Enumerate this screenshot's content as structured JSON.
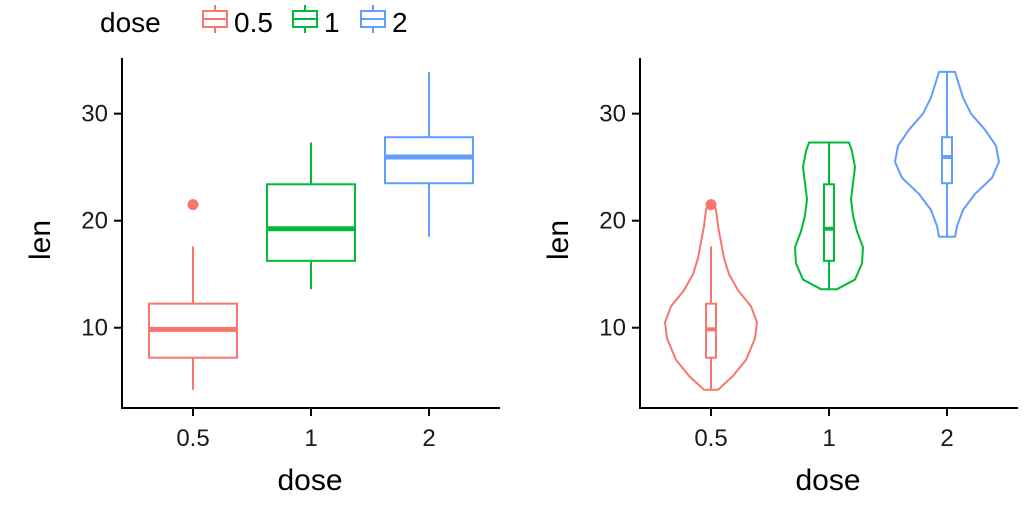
{
  "legend": {
    "title": "dose",
    "entries": [
      {
        "label": "0.5",
        "color": "#F8766D"
      },
      {
        "label": "1",
        "color": "#00BA38"
      },
      {
        "label": "2",
        "color": "#619CFF"
      }
    ]
  },
  "chart_data": [
    {
      "type": "boxplot",
      "xlabel": "dose",
      "ylabel": "len",
      "categories": [
        "0.5",
        "1",
        "2"
      ],
      "ylim": [
        2.5,
        35.2
      ],
      "yticks": [
        "10",
        "20",
        "30"
      ],
      "ytick_values": [
        10,
        20,
        30
      ],
      "boxes": [
        {
          "category": "0.5",
          "min": 4.2,
          "q1": 7.2,
          "median": 9.85,
          "q3": 12.25,
          "max": 17.6,
          "outliers": [
            21.5
          ],
          "color": "#F8766D"
        },
        {
          "category": "1",
          "min": 13.6,
          "q1": 16.25,
          "median": 19.25,
          "q3": 23.4,
          "max": 27.3,
          "outliers": [],
          "color": "#00BA38"
        },
        {
          "category": "2",
          "min": 18.5,
          "q1": 23.5,
          "median": 25.95,
          "q3": 27.8,
          "max": 33.9,
          "outliers": [],
          "color": "#619CFF"
        }
      ]
    },
    {
      "type": "violin",
      "xlabel": "dose",
      "ylabel": "len",
      "categories": [
        "0.5",
        "1",
        "2"
      ],
      "ylim": [
        2.5,
        35.2
      ],
      "yticks": [
        "10",
        "20",
        "30"
      ],
      "ytick_values": [
        10,
        20,
        30
      ],
      "violins": [
        {
          "category": "0.5",
          "color": "#F8766D",
          "outliers": [
            21.5
          ],
          "box": {
            "min": 4.2,
            "q1": 7.2,
            "median": 9.85,
            "q3": 12.25,
            "max": 17.6
          }
        },
        {
          "category": "1",
          "color": "#00BA38",
          "outliers": [],
          "box": {
            "min": 13.6,
            "q1": 16.25,
            "median": 19.25,
            "q3": 23.4,
            "max": 27.3
          }
        },
        {
          "category": "2",
          "color": "#619CFF",
          "outliers": [],
          "box": {
            "min": 18.5,
            "q1": 23.5,
            "median": 25.95,
            "q3": 27.8,
            "max": 33.9
          }
        }
      ]
    }
  ]
}
